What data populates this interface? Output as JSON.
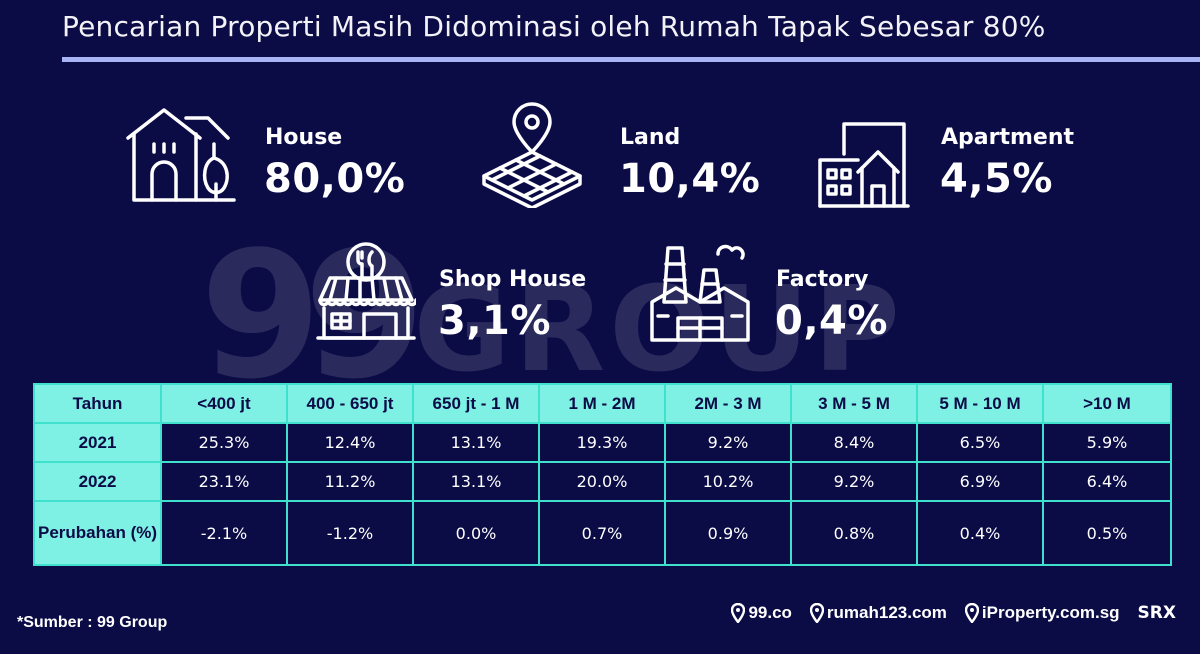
{
  "title": "Pencarian Properti Masih Didominasi oleh Rumah Tapak Sebesar 80%",
  "watermark": {
    "part1": "99",
    "part2": "GROUP"
  },
  "categories": [
    {
      "name": "House",
      "value": "80,0%",
      "icon": "house-icon"
    },
    {
      "name": "Land",
      "value": "10,4%",
      "icon": "land-plot-pin-icon"
    },
    {
      "name": "Apartment",
      "value": "4,5%",
      "icon": "apartment-building-icon"
    },
    {
      "name": "Shop House",
      "value": "3,1%",
      "icon": "shop-house-icon"
    },
    {
      "name": "Factory",
      "value": "0,4%",
      "icon": "factory-icon"
    }
  ],
  "table": {
    "headers": [
      "Tahun",
      "<400 jt",
      "400 - 650 jt",
      "650 jt - 1 M",
      "1 M - 2M",
      "2M - 3 M",
      "3 M - 5 M",
      "5 M - 10 M",
      ">10 M"
    ],
    "rows": [
      {
        "label": "2021",
        "cells": [
          "25.3%",
          "12.4%",
          "13.1%",
          "19.3%",
          "9.2%",
          "8.4%",
          "6.5%",
          "5.9%"
        ]
      },
      {
        "label": "2022",
        "cells": [
          "23.1%",
          "11.2%",
          "13.1%",
          "20.0%",
          "10.2%",
          "9.2%",
          "6.9%",
          "6.4%"
        ]
      },
      {
        "label": "Perubahan (%)",
        "cells": [
          "-2.1%",
          "-1.2%",
          "0.0%",
          "0.7%",
          "0.9%",
          "0.8%",
          "0.4%",
          "0.5%"
        ]
      }
    ]
  },
  "source": "*Sumber : 99 Group",
  "brands": [
    "99.co",
    "rumah123.com",
    "iProperty.com.sg",
    "SRX"
  ],
  "colors": {
    "background": "#0b0b46",
    "table_accent": "#7ff0e4",
    "table_border": "#3fe0cc",
    "title_rule": "#a9b4f4"
  }
}
